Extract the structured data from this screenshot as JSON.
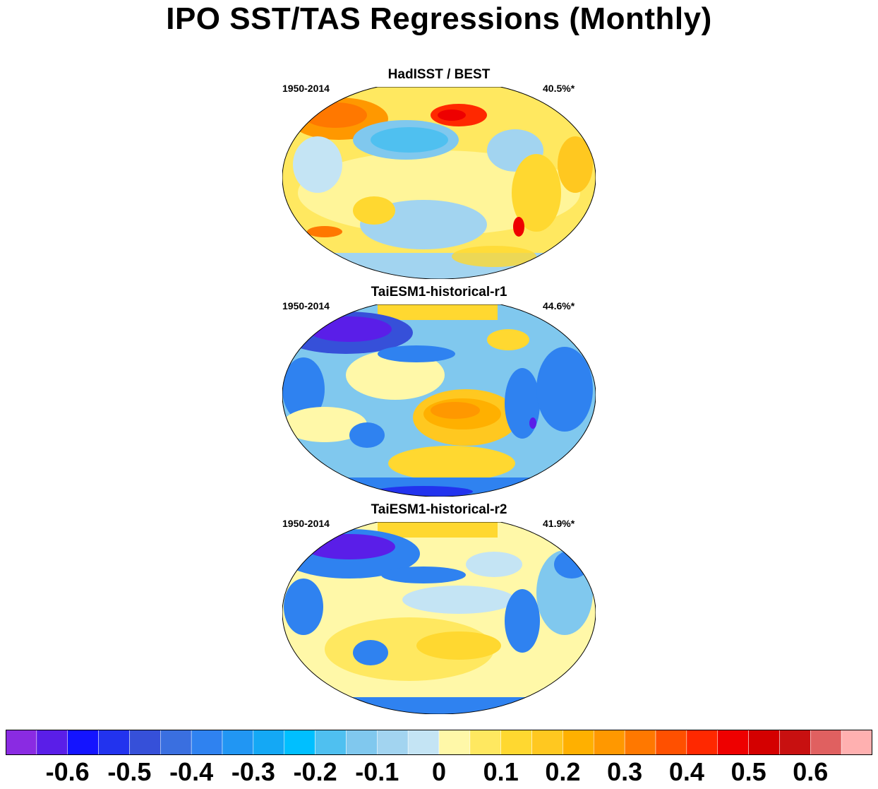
{
  "figure": {
    "title": "IPO SST/TAS Regressions (Monthly)"
  },
  "panels": [
    {
      "title": "HadISST / BEST",
      "period": "1950-2014",
      "variance": "40.5%*"
    },
    {
      "title": "TaiESM1-historical-r1",
      "period": "1950-2014",
      "variance": "44.6%*"
    },
    {
      "title": "TaiESM1-historical-r2",
      "period": "1950-2014",
      "variance": "41.9%*"
    }
  ],
  "colorbar": {
    "colors": [
      "#8a2be2",
      "#5a1ee8",
      "#1414ff",
      "#2233ee",
      "#3650d9",
      "#3a6fe0",
      "#2f82f0",
      "#2196f3",
      "#14a8f5",
      "#00bfff",
      "#4fc0f0",
      "#80c8ee",
      "#a2d4f0",
      "#c4e4f4",
      "#fff8a8",
      "#ffe860",
      "#ffd830",
      "#ffc820",
      "#ffb000",
      "#ff9800",
      "#ff7800",
      "#ff5000",
      "#ff2800",
      "#ee0000",
      "#d40000",
      "#c81010",
      "#e06060",
      "#ffb0b0"
    ],
    "tick_labels": [
      "-0.6",
      "-0.5",
      "-0.4",
      "-0.3",
      "-0.2",
      "-0.1",
      "0",
      "0.1",
      "0.2",
      "0.3",
      "0.4",
      "0.5",
      "0.6"
    ]
  }
}
